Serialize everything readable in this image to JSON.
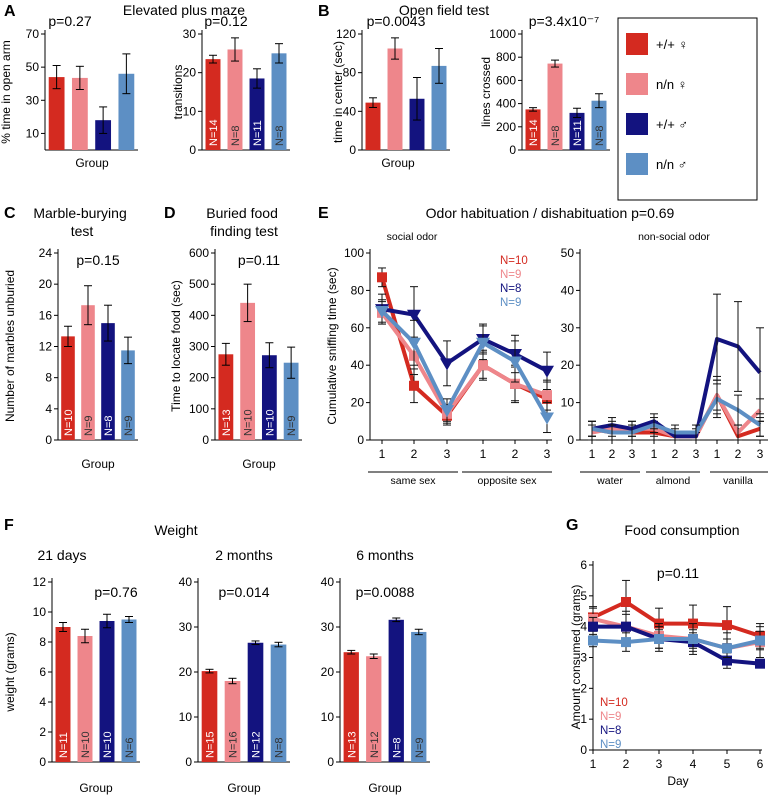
{
  "colors": {
    "wt_female": "#d42a20",
    "nn_female": "#ee868b",
    "wt_male": "#13137f",
    "nn_male": "#5d8fc4"
  },
  "legend": [
    {
      "key": "wt_female",
      "label": "+/+ ♀"
    },
    {
      "key": "nn_female",
      "label": "n/n ♀"
    },
    {
      "key": "wt_male",
      "label": "+/+ ♂"
    },
    {
      "key": "nn_male",
      "label": "n/n ♂"
    }
  ],
  "panels": {
    "A": {
      "label": "A",
      "title": "Elevated plus maze"
    },
    "B": {
      "label": "B",
      "title": "Open field test"
    },
    "C": {
      "label": "C",
      "title": "Marble-burying test"
    },
    "D": {
      "label": "D",
      "title": "Buried food finding test"
    },
    "E": {
      "label": "E",
      "title": "Odor habituation / dishabituation p=0.69"
    },
    "F": {
      "label": "F",
      "title": "Weight"
    },
    "G": {
      "label": "G",
      "title": "Food consumption"
    }
  },
  "chart_data": [
    {
      "id": "A1",
      "panel": "A",
      "type": "bar",
      "categories": [
        "+/+ ♀",
        "n/n ♀",
        "+/+ ♂",
        "n/n ♂"
      ],
      "values": [
        44,
        43.5,
        18,
        46
      ],
      "errors": [
        7,
        7,
        8,
        12
      ],
      "n_labels": [],
      "pvalue": "p=0.27",
      "ylabel": "% time in open arm",
      "xlabel": "Group",
      "ylim": [
        0,
        70
      ],
      "yticks": [
        10,
        30,
        50,
        70
      ]
    },
    {
      "id": "A2",
      "panel": "A",
      "type": "bar",
      "categories": [
        "+/+ ♀",
        "n/n ♀",
        "+/+ ♂",
        "n/n ♂"
      ],
      "values": [
        23.5,
        26,
        18.5,
        25
      ],
      "errors": [
        1,
        3,
        2.5,
        2.5
      ],
      "n_labels": [
        "N=14",
        "N=8",
        "N=11",
        "N=8"
      ],
      "pvalue": "p=0.12",
      "ylabel": "transitions",
      "xlabel": "",
      "ylim": [
        0,
        30
      ],
      "yticks": [
        0,
        10,
        20,
        30
      ]
    },
    {
      "id": "B1",
      "panel": "B",
      "type": "bar",
      "categories": [
        "+/+ ♀",
        "n/n ♀",
        "+/+ ♂",
        "n/n ♂"
      ],
      "values": [
        49,
        105,
        53,
        87
      ],
      "errors": [
        5,
        11,
        22,
        18
      ],
      "n_labels": [],
      "pvalue": "p=0.0043",
      "ylabel": "time in center (sec)",
      "xlabel": "Group",
      "ylim": [
        0,
        120
      ],
      "yticks": [
        0,
        40,
        80,
        120
      ]
    },
    {
      "id": "B2",
      "panel": "B",
      "type": "bar",
      "categories": [
        "+/+ ♀",
        "n/n ♀",
        "+/+ ♂",
        "n/n ♂"
      ],
      "values": [
        350,
        745,
        320,
        425
      ],
      "errors": [
        15,
        30,
        40,
        60
      ],
      "n_labels": [
        "N=14",
        "N=8",
        "N=11",
        "N=8"
      ],
      "pvalue": "p=3.4x10⁻⁷",
      "ylabel": "lines crossed",
      "xlabel": "",
      "ylim": [
        0,
        1000
      ],
      "yticks": [
        0,
        200,
        400,
        600,
        800,
        1000
      ]
    },
    {
      "id": "C",
      "panel": "C",
      "type": "bar",
      "categories": [
        "+/+ ♀",
        "n/n ♀",
        "+/+ ♂",
        "n/n ♂"
      ],
      "values": [
        13.3,
        17.3,
        15,
        11.5
      ],
      "errors": [
        1.3,
        2.5,
        2.3,
        1.7
      ],
      "n_labels": [
        "N=10",
        "N=9",
        "N=8",
        "N=9"
      ],
      "pvalue": "p=0.15",
      "ylabel": "Number of marbles unburied",
      "xlabel": "Group",
      "ylim": [
        0,
        24
      ],
      "yticks": [
        0,
        4,
        8,
        12,
        16,
        20,
        24
      ]
    },
    {
      "id": "D",
      "panel": "D",
      "type": "bar",
      "categories": [
        "+/+ ♀",
        "n/n ♀",
        "+/+ ♂",
        "n/n ♂"
      ],
      "values": [
        275,
        440,
        272,
        248
      ],
      "errors": [
        35,
        60,
        40,
        50
      ],
      "n_labels": [
        "N=13",
        "N=10",
        "N=10",
        "N=9"
      ],
      "pvalue": "p=0.11",
      "ylabel": "Time to locate food (sec)",
      "xlabel": "Group",
      "ylim": [
        0,
        600
      ],
      "yticks": [
        0,
        100,
        200,
        300,
        400,
        500,
        600
      ]
    },
    {
      "id": "E1",
      "panel": "E",
      "type": "line",
      "subtitle": "social odor",
      "x": [
        "1",
        "2",
        "3",
        "1",
        "2",
        "3"
      ],
      "groups": [
        "same sex",
        "opposite sex"
      ],
      "series": [
        {
          "name": "N=10",
          "color": "wt_female",
          "marker": "square",
          "values": [
            87,
            29,
            13,
            40,
            30,
            22
          ],
          "errors": [
            5,
            9,
            5,
            8,
            10,
            9
          ]
        },
        {
          "name": "N=9",
          "color": "nn_female",
          "marker": "square",
          "values": [
            68,
            45,
            14,
            40,
            30,
            24
          ],
          "errors": [
            6,
            10,
            5,
            7,
            9,
            8
          ]
        },
        {
          "name": "N=8",
          "color": "wt_male",
          "marker": "triangle",
          "values": [
            70,
            67,
            41,
            54,
            46,
            37
          ],
          "errors": [
            8,
            15,
            12,
            8,
            10,
            10
          ]
        },
        {
          "name": "N=9",
          "color": "nn_male",
          "marker": "triangle",
          "values": [
            69,
            52,
            16,
            52,
            42,
            12
          ],
          "errors": [
            6,
            12,
            6,
            9,
            11,
            8
          ]
        }
      ],
      "ylabel": "Cumulative sniffing time (sec)",
      "ylim": [
        0,
        100
      ],
      "yticks": [
        0,
        20,
        40,
        60,
        80,
        100
      ]
    },
    {
      "id": "E2",
      "panel": "E",
      "type": "line",
      "subtitle": "non-social odor",
      "x": [
        "1",
        "2",
        "3",
        "1",
        "2",
        "3",
        "1",
        "2",
        "3"
      ],
      "groups": [
        "water",
        "almond",
        "vanilla"
      ],
      "series": [
        {
          "name": "N=10",
          "color": "wt_female",
          "values": [
            3,
            2,
            2,
            2,
            1,
            1,
            12,
            1,
            3
          ],
          "errors": [
            2,
            2,
            2,
            2,
            1,
            1,
            4,
            2,
            2
          ]
        },
        {
          "name": "N=9",
          "color": "nn_female",
          "values": [
            2,
            3,
            3,
            3,
            1,
            1,
            12,
            2,
            8
          ],
          "errors": [
            2,
            2,
            2,
            2,
            1,
            1,
            5,
            2,
            3
          ]
        },
        {
          "name": "N=8",
          "color": "wt_male",
          "values": [
            3,
            4,
            3,
            5,
            1,
            1,
            27,
            25,
            18
          ],
          "errors": [
            2,
            2,
            2,
            2,
            2,
            2,
            12,
            12,
            12
          ]
        },
        {
          "name": "N=9",
          "color": "nn_male",
          "values": [
            3,
            2,
            2,
            4,
            2,
            2,
            11,
            8,
            4
          ],
          "errors": [
            2,
            2,
            2,
            2,
            2,
            2,
            5,
            4,
            3
          ]
        }
      ],
      "ylim": [
        0,
        50
      ],
      "yticks": [
        0,
        10,
        20,
        30,
        40,
        50
      ]
    },
    {
      "id": "F1",
      "panel": "F",
      "type": "bar",
      "subtitle": "21 days",
      "categories": [
        "+/+ ♀",
        "n/n ♀",
        "+/+ ♂",
        "n/n ♂"
      ],
      "values": [
        9.0,
        8.4,
        9.4,
        9.5
      ],
      "errors": [
        0.3,
        0.45,
        0.45,
        0.2
      ],
      "n_labels": [
        "N=11",
        "N=10",
        "N=10",
        "N=6"
      ],
      "pvalue": "p=0.76",
      "ylabel": "weight (grams)",
      "xlabel": "Group",
      "ylim": [
        0,
        12
      ],
      "yticks": [
        0,
        2,
        4,
        6,
        8,
        10,
        12
      ]
    },
    {
      "id": "F2",
      "panel": "F",
      "type": "bar",
      "subtitle": "2 months",
      "categories": [
        "+/+ ♀",
        "n/n ♀",
        "+/+ ♂",
        "n/n ♂"
      ],
      "values": [
        20.2,
        18,
        26.5,
        26.1
      ],
      "errors": [
        0.4,
        0.6,
        0.4,
        0.5
      ],
      "n_labels": [
        "N=15",
        "N=16",
        "N=12",
        "N=8"
      ],
      "pvalue": "p=0.014",
      "ylabel": "",
      "xlabel": "Group",
      "ylim": [
        0,
        40
      ],
      "yticks": [
        0,
        10,
        20,
        30,
        40
      ]
    },
    {
      "id": "F3",
      "panel": "F",
      "type": "bar",
      "subtitle": "6 months",
      "categories": [
        "+/+ ♀",
        "n/n ♀",
        "+/+ ♂",
        "n/n ♂"
      ],
      "values": [
        24.4,
        23.5,
        31.6,
        28.9
      ],
      "errors": [
        0.4,
        0.5,
        0.4,
        0.6
      ],
      "n_labels": [
        "N=13",
        "N=12",
        "N=8",
        "N=9"
      ],
      "pvalue": "p=0.0088",
      "ylabel": "",
      "xlabel": "Group",
      "ylim": [
        0,
        40
      ],
      "yticks": [
        0,
        10,
        20,
        30,
        40
      ]
    },
    {
      "id": "G",
      "panel": "G",
      "type": "line",
      "x": [
        1,
        2,
        3,
        4,
        5,
        6
      ],
      "series": [
        {
          "name": "N=10",
          "color": "wt_female",
          "values": [
            4.3,
            4.8,
            4.1,
            4.1,
            4.05,
            3.7
          ],
          "errors": [
            0.3,
            0.7,
            0.5,
            0.6,
            0.6,
            0.4
          ]
        },
        {
          "name": "N=9",
          "color": "nn_female",
          "values": [
            4.25,
            4.0,
            3.7,
            3.6,
            3.3,
            3.5
          ],
          "errors": [
            0.4,
            0.5,
            0.4,
            0.5,
            0.5,
            0.5
          ]
        },
        {
          "name": "N=8",
          "color": "wt_male",
          "values": [
            4.0,
            4.0,
            3.6,
            3.5,
            2.9,
            2.8
          ],
          "errors": [
            0.3,
            0.4,
            0.4,
            0.3,
            0.25,
            0.1
          ]
        },
        {
          "name": "N=9",
          "color": "nn_male",
          "values": [
            3.55,
            3.5,
            3.6,
            3.6,
            3.3,
            3.55
          ],
          "errors": [
            0.2,
            0.3,
            0.3,
            0.3,
            0.3,
            0.3
          ]
        }
      ],
      "pvalue": "p=0.11",
      "ylabel": "Amount consumed (grams)",
      "xlabel": "Day",
      "ylim": [
        0,
        6
      ],
      "yticks": [
        0,
        1,
        2,
        3,
        4,
        5,
        6
      ]
    }
  ]
}
